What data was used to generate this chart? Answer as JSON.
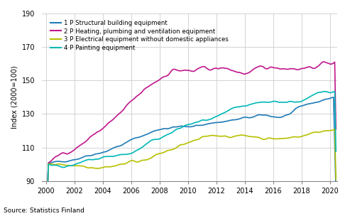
{
  "title": "",
  "ylabel": "Index (2000=100)",
  "source": "Source: Statistics Finland",
  "ylim": [
    90,
    190
  ],
  "yticks": [
    90,
    110,
    130,
    150,
    170,
    190
  ],
  "xstart": 2000,
  "xend": 2020.5,
  "xticks": [
    2000,
    2002,
    2004,
    2006,
    2008,
    2010,
    2012,
    2014,
    2016,
    2018,
    2020
  ],
  "series_labels": [
    "1 P Structural building equipment",
    "2 P Heating, plumbing and ventilation equipment",
    "3 P Electrical equipment without domestic appliances",
    "4 P Painting equipment"
  ],
  "series_colors": [
    "#1f7bb8",
    "#c0178c",
    "#b8c000",
    "#00b8b8"
  ],
  "series_linewidths": [
    1.2,
    1.2,
    1.2,
    1.2
  ],
  "n_points": 246,
  "background_color": "#ffffff",
  "grid_color": "#cccccc"
}
